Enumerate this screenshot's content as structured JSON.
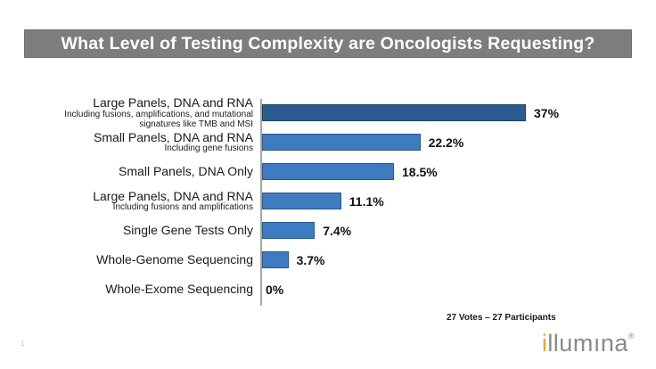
{
  "slide": {
    "title": "What Level of Testing Complexity are Oncologists Requesting?",
    "page_number": "1",
    "votes_note": "27 Votes – 27 Participants",
    "logo": {
      "first_letter": "i",
      "rest": "llumına",
      "registered": "®"
    },
    "colors": {
      "title_bg": "#7D7D7D",
      "title_text": "#FFFFFF",
      "logo_orange": "#F0A32E",
      "logo_gray": "#8A8A8A"
    }
  },
  "chart_data": {
    "type": "bar",
    "orientation": "horizontal",
    "title": "What Level of Testing Complexity are Oncologists Requesting?",
    "categories": [
      "Large Panels, DNA and RNA",
      "Small Panels, DNA and RNA",
      "Small Panels, DNA Only",
      "Large Panels, DNA and RNA",
      "Single Gene Tests Only",
      "Whole-Genome Sequencing",
      "Whole-Exome Sequencing"
    ],
    "sublabels": [
      [
        "Including fusions, amplifications, and mutational",
        "signatures like TMB and MSI"
      ],
      [
        "Including gene fusions"
      ],
      [],
      [
        "Including fusions and amplifications"
      ],
      [],
      [],
      []
    ],
    "values": [
      37,
      22.2,
      18.5,
      11.1,
      7.4,
      3.7,
      0
    ],
    "value_labels": [
      "37%",
      "22.2%",
      "18.5%",
      "11.1%",
      "7.4%",
      "3.7%",
      "0%"
    ],
    "unit": "%",
    "xlim": [
      0,
      40
    ],
    "grid": false,
    "legend": false,
    "bar_fill_colors": {
      "first": "#2C5C8F",
      "default": "#3D7CC1"
    },
    "bar_border_colors": {
      "first": "#1E4163",
      "default": "#2A5787"
    },
    "axis_color": "#A6A6A6",
    "annotation": "27 Votes – 27 Participants"
  }
}
